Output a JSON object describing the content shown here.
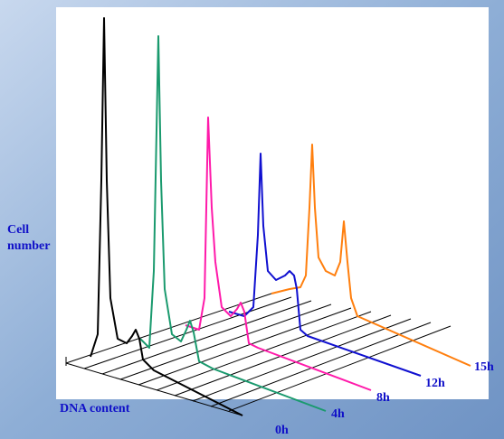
{
  "y_label": "Cell number",
  "x_label": "DNA content",
  "series_labels": [
    "0h",
    "4h",
    "8h",
    "12h",
    "15h"
  ]
}
